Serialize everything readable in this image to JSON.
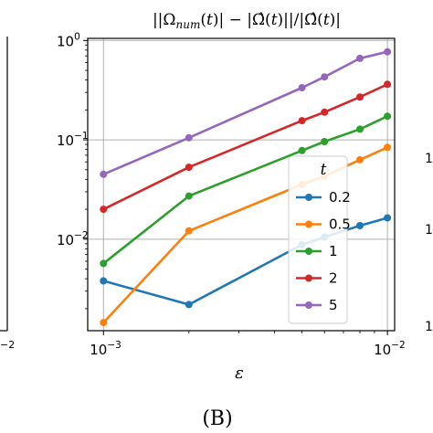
{
  "chart_data": {
    "type": "line",
    "title": "||Ω_num(t)| − |Ω̂(t)||/|Ω̂(t)|",
    "xlabel": "ε",
    "ylabel": "",
    "xscale": "log",
    "yscale": "log",
    "xlim": [
      0.00088,
      0.0106
    ],
    "ylim": [
      0.0012,
      1.05
    ],
    "grid": true,
    "x_ticks": [
      {
        "value": 0.001,
        "base": "10",
        "exp": "−3"
      },
      {
        "value": 0.01,
        "base": "10",
        "exp": "−2"
      }
    ],
    "y_ticks": [
      {
        "value": 1,
        "base": "10",
        "exp": "0"
      },
      {
        "value": 0.1,
        "base": "10",
        "exp": "−1"
      },
      {
        "value": 0.01,
        "base": "10",
        "exp": "−2"
      }
    ],
    "legend_title": "t",
    "legend_position": "lower-right",
    "x": [
      0.001,
      0.002,
      0.005,
      0.006,
      0.008,
      0.01
    ],
    "series": [
      {
        "name": "0.2",
        "color": "#1f77b4",
        "values": [
          0.0038,
          0.0022,
          0.0088,
          0.0105,
          0.0137,
          0.0164
        ]
      },
      {
        "name": "0.5",
        "color": "#ff7f0e",
        "values": [
          0.00145,
          0.0121,
          0.0355,
          0.043,
          0.063,
          0.084
        ]
      },
      {
        "name": "1",
        "color": "#2ca02c",
        "values": [
          0.0057,
          0.0272,
          0.078,
          0.096,
          0.128,
          0.173
        ]
      },
      {
        "name": "2",
        "color": "#d62728",
        "values": [
          0.02,
          0.053,
          0.156,
          0.19,
          0.27,
          0.362
        ]
      },
      {
        "name": "5",
        "color": "#9467bd",
        "values": [
          0.045,
          0.105,
          0.335,
          0.43,
          0.66,
          0.77
        ]
      }
    ]
  },
  "caption": "(B)",
  "neighbor_panels": {
    "left_tick": "−2",
    "right_ticks": [
      "1",
      "1",
      "1"
    ]
  }
}
